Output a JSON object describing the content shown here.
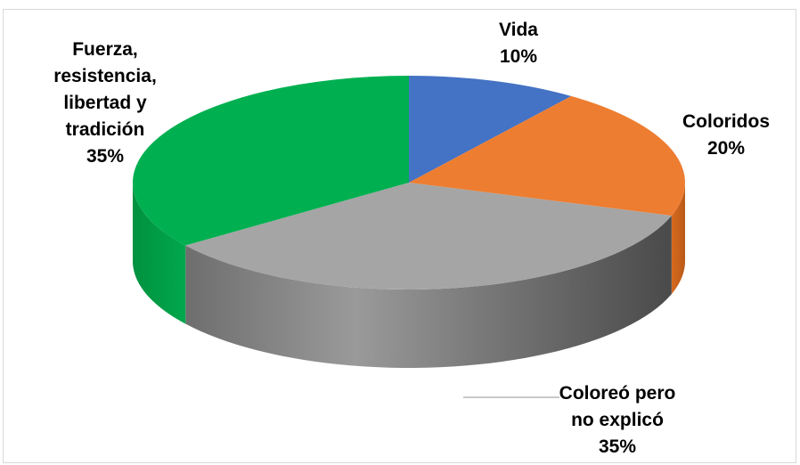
{
  "chart_data": {
    "type": "pie",
    "title": "",
    "slices": [
      {
        "label_lines": [
          "Vida"
        ],
        "value": 10,
        "pct_text": "10%",
        "color": "#4472C4"
      },
      {
        "label_lines": [
          "Coloridos"
        ],
        "value": 20,
        "pct_text": "20%",
        "color": "#ED7D31"
      },
      {
        "label_lines": [
          "Coloreó pero",
          "no explicó"
        ],
        "value": 35,
        "pct_text": "35%",
        "color": "#A5A5A5"
      },
      {
        "label_lines": [
          "Fuerza,",
          "resistencia,",
          "libertad y",
          "tradición"
        ],
        "value": 35,
        "pct_text": "35%",
        "color": "#00B050"
      }
    ],
    "style": "3d-pie",
    "legend": "none"
  }
}
